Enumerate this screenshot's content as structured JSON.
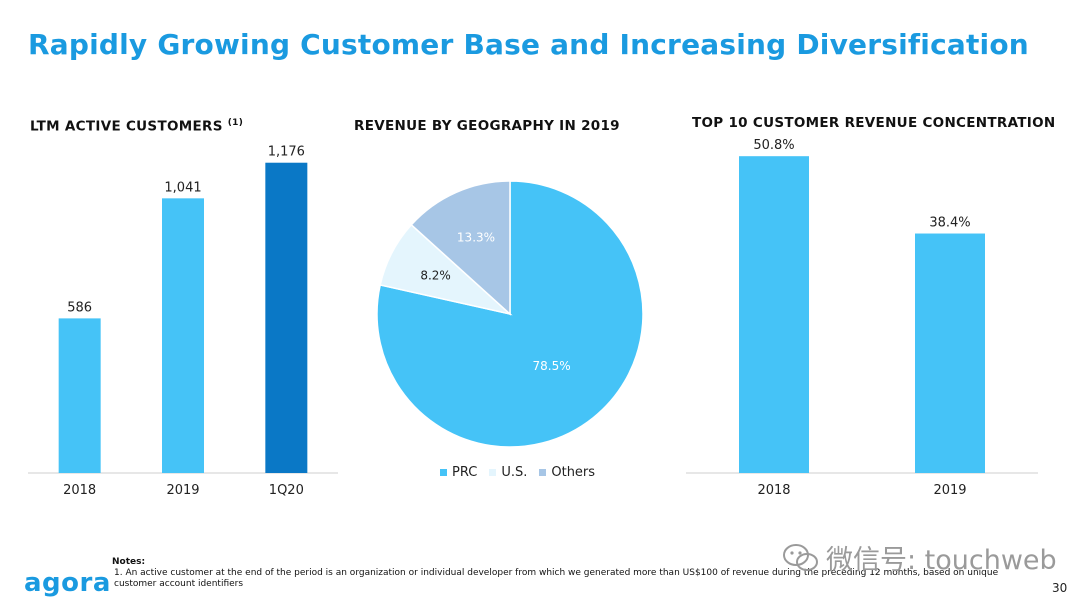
{
  "slide": {
    "title": "Rapidly Growing Customer Base and Increasing Diversification",
    "page_number": "30",
    "logo_text": "agora",
    "watermark_text": "微信号: touchweb"
  },
  "notes": {
    "title": "Notes:",
    "items": [
      "1.  An active customer at the end of the period is an organization or individual developer from which we generated more than US$100 of revenue during the preceding 12 months, based on unique customer account identifiers"
    ]
  },
  "chart_titles": {
    "customers": "LTM ACTIVE CUSTOMERS",
    "customers_note": "(1)",
    "geography": "REVENUE BY GEOGRAPHY IN 2019",
    "concentration": "TOP 10 CUSTOMER REVENUE CONCENTRATION"
  },
  "colors": {
    "title": "#1a9ae0",
    "bar_light": "#45c3f7",
    "bar_dark": "#0a78c6",
    "pie_prc": "#45c3f7",
    "pie_us": "#e4f5fd",
    "pie_others": "#a7c6e6"
  },
  "chart_data": [
    {
      "type": "bar",
      "title": "LTM ACTIVE CUSTOMERS (1)",
      "categories": [
        "2018",
        "2019",
        "1Q20"
      ],
      "values": [
        586,
        1041,
        1176
      ],
      "labels": [
        "586",
        "1,041",
        "1,176"
      ],
      "highlight_index": 2,
      "ylim": [
        0,
        1300
      ]
    },
    {
      "type": "pie",
      "title": "REVENUE BY GEOGRAPHY IN 2019",
      "categories": [
        "PRC",
        "U.S.",
        "Others"
      ],
      "values": [
        78.5,
        8.2,
        13.3
      ],
      "labels": [
        "78.5%",
        "8.2%",
        "13.3%"
      ]
    },
    {
      "type": "bar",
      "title": "TOP 10 CUSTOMER REVENUE CONCENTRATION",
      "categories": [
        "2018",
        "2019"
      ],
      "values": [
        50.8,
        38.4
      ],
      "labels": [
        "50.8%",
        "38.4%"
      ],
      "ylim": [
        0,
        55
      ]
    }
  ]
}
